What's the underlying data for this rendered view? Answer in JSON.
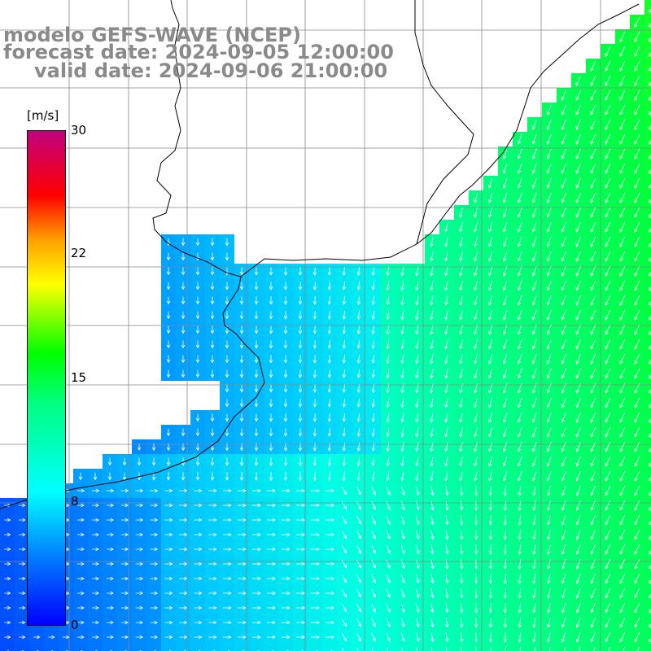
{
  "title": {
    "model": "modelo GEFS-WAVE (NCEP)",
    "forecast": "forecast date: 2024-09-05 12:00:00",
    "valid": "valid date: 2024-09-06 21:00:00"
  },
  "colorbar": {
    "unit": "[m/s]",
    "ticks": [
      "30",
      "22",
      "15",
      "8",
      "0"
    ],
    "colors": [
      "#0000ff",
      "#0080ff",
      "#00ffff",
      "#00ff80",
      "#00ff00",
      "#80ff00",
      "#ffff00",
      "#ffa000",
      "#ff0000",
      "#c0007f"
    ]
  },
  "map": {
    "field": "wind speed with direction arrows",
    "land_color": "#ffffff",
    "grid_color": "#888888",
    "arrow_color": "#ffffff"
  }
}
